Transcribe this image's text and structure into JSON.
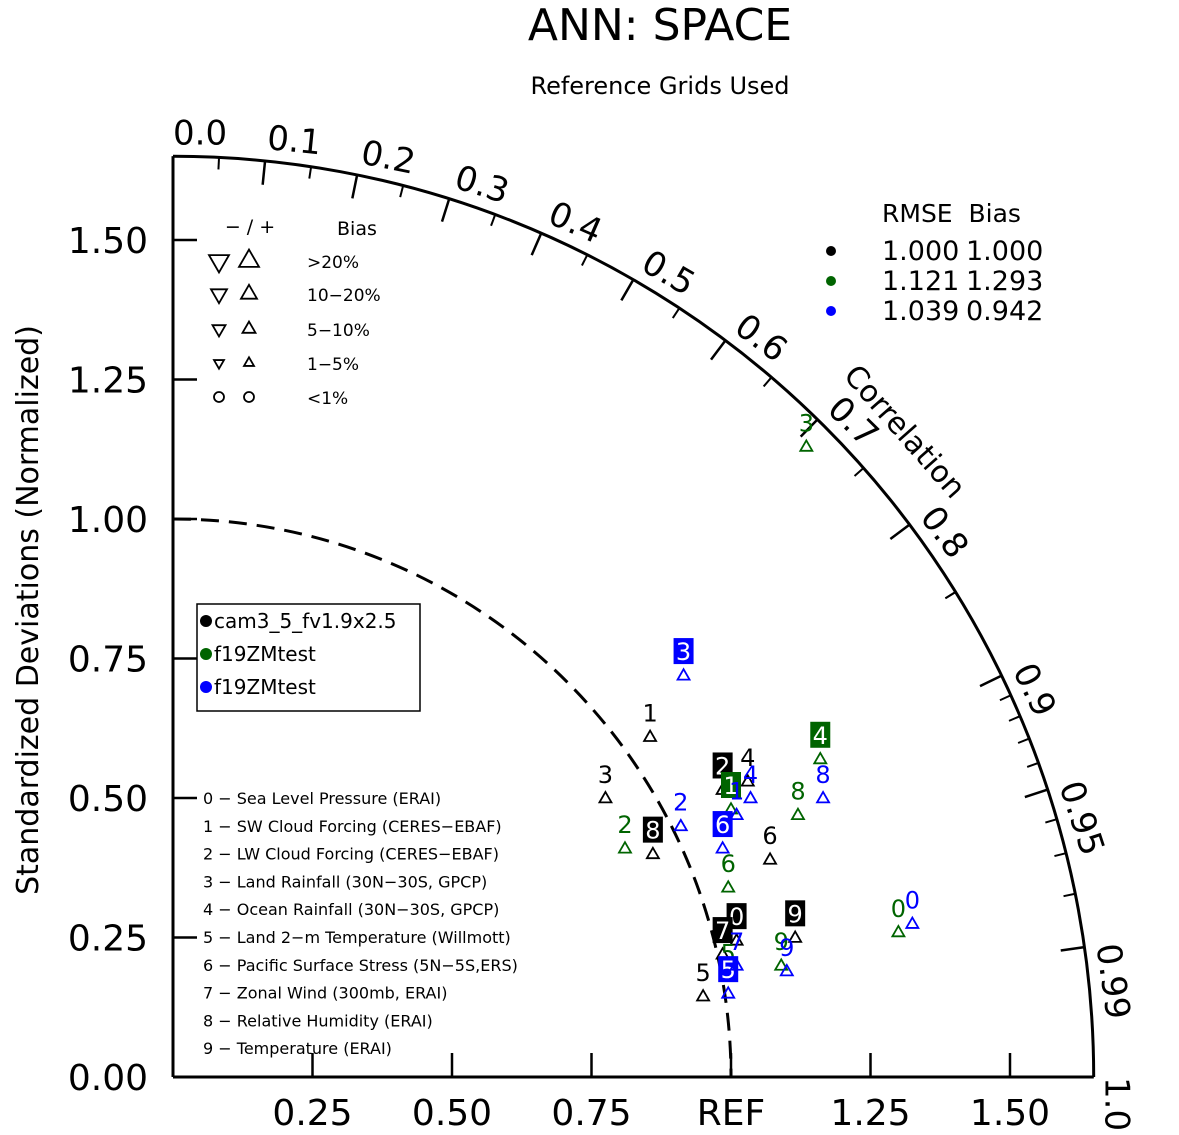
{
  "chart_data": {
    "type": "taylor",
    "title": "ANN: SPACE",
    "subtitle": "Reference Grids Used",
    "ylabel": "Standardized Deviations (Normalized)",
    "xlabel_ref": "REF",
    "arc_label": "Correlation",
    "std_range": [
      0,
      1.65
    ],
    "std_ticks": [
      "0.00",
      "0.25",
      "0.50",
      "0.75",
      "1.00",
      "1.25",
      "1.50"
    ],
    "x_ticks": [
      "0.25",
      "0.50",
      "0.75",
      "1.25",
      "1.50"
    ],
    "corr_labels": [
      "0.0",
      "0.1",
      "0.2",
      "0.3",
      "0.4",
      "0.5",
      "0.6",
      "0.7",
      "0.8",
      "0.9",
      "0.95",
      "0.99",
      "1.0"
    ],
    "bias_legend": {
      "header_sign": "− / +",
      "header_bias": "Bias",
      "rows": [
        ">20%",
        "10−20%",
        "5−10%",
        "1−5%",
        "<1%"
      ]
    },
    "rmse_legend": {
      "header": "RMSE  Bias",
      "rows": [
        {
          "rmse": "1.000",
          "bias": "1.000",
          "color": "#000000"
        },
        {
          "rmse": "1.121",
          "bias": "1.293",
          "color": "#006400"
        },
        {
          "rmse": "1.039",
          "bias": "0.942",
          "color": "#0000ff"
        }
      ]
    },
    "cases": [
      {
        "name": "cam3_5_fv1.9x2.5",
        "color": "#000000"
      },
      {
        "name": "f19ZMtest",
        "color": "#006400"
      },
      {
        "name": "f19ZMtest",
        "color": "#0000ff"
      }
    ],
    "variables": [
      "0 − Sea Level Pressure (ERAI)",
      "1 − SW Cloud Forcing (CERES−EBAF)",
      "2 − LW Cloud Forcing (CERES−EBAF)",
      "3 − Land Rainfall (30N−30S, GPCP)",
      "4 − Ocean Rainfall (30N−30S, GPCP)",
      "5 − Land 2−m Temperature (Willmott)",
      "6 − Pacific Surface Stress (5N−5S,ERS)",
      "7 − Zonal Wind (300mb, ERAI)",
      "8 − Relative Humidity (ERAI)",
      "9 − Temperature (ERAI)"
    ],
    "points": [
      {
        "case": 0,
        "label": "0",
        "x": 1.01,
        "y": 0.265,
        "boxed": true
      },
      {
        "case": 0,
        "label": "1",
        "x": 0.855,
        "y": 0.63,
        "boxed": false
      },
      {
        "case": 0,
        "label": "2",
        "x": 0.985,
        "y": 0.535,
        "boxed": true
      },
      {
        "case": 0,
        "label": "3",
        "x": 0.775,
        "y": 0.52,
        "boxed": false
      },
      {
        "case": 0,
        "label": "4",
        "x": 1.03,
        "y": 0.55,
        "boxed": false
      },
      {
        "case": 0,
        "label": "5",
        "x": 0.95,
        "y": 0.165,
        "boxed": false
      },
      {
        "case": 0,
        "label": "6",
        "x": 1.07,
        "y": 0.41,
        "boxed": false
      },
      {
        "case": 0,
        "label": "7",
        "x": 0.985,
        "y": 0.24,
        "boxed": true
      },
      {
        "case": 0,
        "label": "8",
        "x": 0.86,
        "y": 0.42,
        "boxed": true
      },
      {
        "case": 0,
        "label": "9",
        "x": 1.115,
        "y": 0.27,
        "boxed": true
      },
      {
        "case": 1,
        "label": "0",
        "x": 1.3,
        "y": 0.28,
        "boxed": false
      },
      {
        "case": 1,
        "label": "1",
        "x": 1.0,
        "y": 0.5,
        "boxed": true
      },
      {
        "case": 1,
        "label": "2",
        "x": 0.81,
        "y": 0.43,
        "boxed": false
      },
      {
        "case": 1,
        "label": "3",
        "x": 1.135,
        "y": 1.15,
        "boxed": false
      },
      {
        "case": 1,
        "label": "4",
        "x": 1.16,
        "y": 0.59,
        "boxed": true
      },
      {
        "case": 1,
        "label": "5",
        "x": 0.995,
        "y": 0.2,
        "boxed": false
      },
      {
        "case": 1,
        "label": "6",
        "x": 0.995,
        "y": 0.36,
        "boxed": false
      },
      {
        "case": 1,
        "label": "8",
        "x": 1.12,
        "y": 0.49,
        "boxed": false
      },
      {
        "case": 1,
        "label": "9",
        "x": 1.09,
        "y": 0.22,
        "boxed": false
      },
      {
        "case": 2,
        "label": "0",
        "x": 1.325,
        "y": 0.295,
        "boxed": false
      },
      {
        "case": 2,
        "label": "1",
        "x": 1.01,
        "y": 0.49,
        "boxed": false
      },
      {
        "case": 2,
        "label": "2",
        "x": 0.91,
        "y": 0.47,
        "boxed": false
      },
      {
        "case": 2,
        "label": "3",
        "x": 0.915,
        "y": 0.74,
        "boxed": true
      },
      {
        "case": 2,
        "label": "4",
        "x": 1.035,
        "y": 0.52,
        "boxed": false
      },
      {
        "case": 2,
        "label": "5",
        "x": 0.995,
        "y": 0.17,
        "boxed": true
      },
      {
        "case": 2,
        "label": "6",
        "x": 0.985,
        "y": 0.43,
        "boxed": true
      },
      {
        "case": 2,
        "label": "7",
        "x": 1.01,
        "y": 0.22,
        "boxed": false
      },
      {
        "case": 2,
        "label": "8",
        "x": 1.165,
        "y": 0.52,
        "boxed": false
      },
      {
        "case": 2,
        "label": "9",
        "x": 1.1,
        "y": 0.21,
        "boxed": false
      }
    ]
  }
}
